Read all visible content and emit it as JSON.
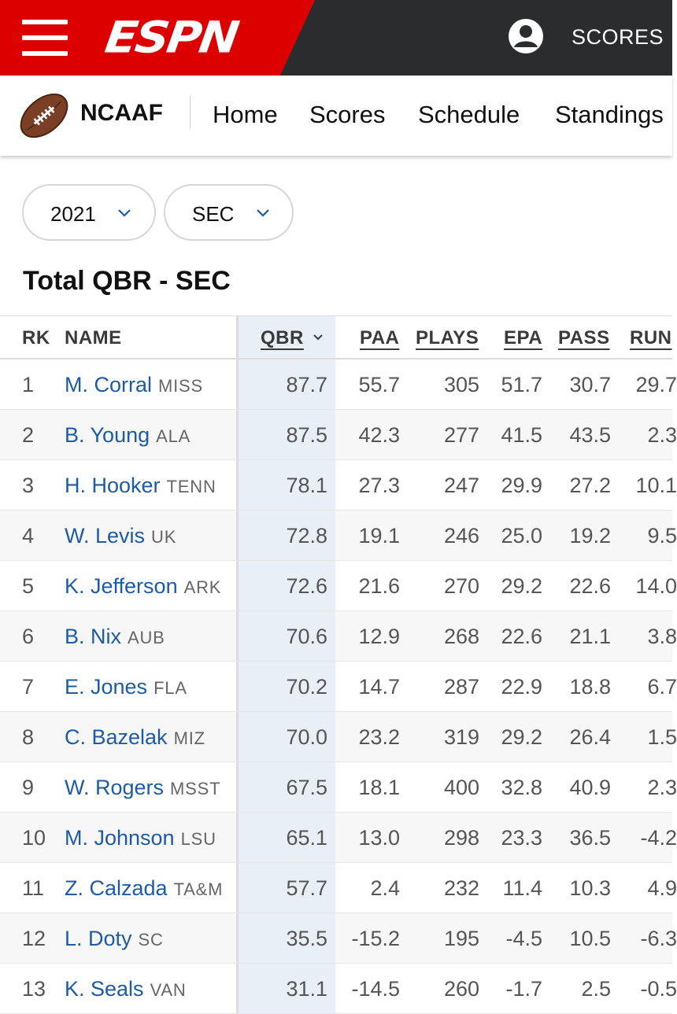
{
  "header": {
    "logo": "ESPN",
    "scores_label": "SCORES",
    "accent": "#dd0000",
    "bar_color": "#2b2c2d"
  },
  "subnav": {
    "league": "NCAAF",
    "items": [
      "Home",
      "Scores",
      "Schedule",
      "Standings"
    ]
  },
  "filters": {
    "season": "2021",
    "conference": "SEC"
  },
  "page_title": "Total QBR - SEC",
  "table": {
    "columns": [
      "RK",
      "NAME",
      "QBR",
      "PAA",
      "PLAYS",
      "EPA",
      "PASS",
      "RUN"
    ],
    "sorted_by": "QBR",
    "rows": [
      {
        "rk": "1",
        "name": "M. Corral",
        "team": "MISS",
        "qbr": "87.7",
        "paa": "55.7",
        "plays": "305",
        "epa": "51.7",
        "pass": "30.7",
        "run": "29.7"
      },
      {
        "rk": "2",
        "name": "B. Young",
        "team": "ALA",
        "qbr": "87.5",
        "paa": "42.3",
        "plays": "277",
        "epa": "41.5",
        "pass": "43.5",
        "run": "2.3"
      },
      {
        "rk": "3",
        "name": "H. Hooker",
        "team": "TENN",
        "qbr": "78.1",
        "paa": "27.3",
        "plays": "247",
        "epa": "29.9",
        "pass": "27.2",
        "run": "10.1"
      },
      {
        "rk": "4",
        "name": "W. Levis",
        "team": "UK",
        "qbr": "72.8",
        "paa": "19.1",
        "plays": "246",
        "epa": "25.0",
        "pass": "19.2",
        "run": "9.5"
      },
      {
        "rk": "5",
        "name": "K. Jefferson",
        "team": "ARK",
        "qbr": "72.6",
        "paa": "21.6",
        "plays": "270",
        "epa": "29.2",
        "pass": "22.6",
        "run": "14.0"
      },
      {
        "rk": "6",
        "name": "B. Nix",
        "team": "AUB",
        "qbr": "70.6",
        "paa": "12.9",
        "plays": "268",
        "epa": "22.6",
        "pass": "21.1",
        "run": "3.8"
      },
      {
        "rk": "7",
        "name": "E. Jones",
        "team": "FLA",
        "qbr": "70.2",
        "paa": "14.7",
        "plays": "287",
        "epa": "22.9",
        "pass": "18.8",
        "run": "6.7"
      },
      {
        "rk": "8",
        "name": "C. Bazelak",
        "team": "MIZ",
        "qbr": "70.0",
        "paa": "23.2",
        "plays": "319",
        "epa": "29.2",
        "pass": "26.4",
        "run": "1.5"
      },
      {
        "rk": "9",
        "name": "W. Rogers",
        "team": "MSST",
        "qbr": "67.5",
        "paa": "18.1",
        "plays": "400",
        "epa": "32.8",
        "pass": "40.9",
        "run": "2.3"
      },
      {
        "rk": "10",
        "name": "M. Johnson",
        "team": "LSU",
        "qbr": "65.1",
        "paa": "13.0",
        "plays": "298",
        "epa": "23.3",
        "pass": "36.5",
        "run": "-4.2"
      },
      {
        "rk": "11",
        "name": "Z. Calzada",
        "team": "TA&M",
        "qbr": "57.7",
        "paa": "2.4",
        "plays": "232",
        "epa": "11.4",
        "pass": "10.3",
        "run": "4.9"
      },
      {
        "rk": "12",
        "name": "L. Doty",
        "team": "SC",
        "qbr": "35.5",
        "paa": "-15.2",
        "plays": "195",
        "epa": "-4.5",
        "pass": "10.5",
        "run": "-6.3"
      },
      {
        "rk": "13",
        "name": "K. Seals",
        "team": "VAN",
        "qbr": "31.1",
        "paa": "-14.5",
        "plays": "260",
        "epa": "-1.7",
        "pass": "2.5",
        "run": "-0.5"
      }
    ]
  }
}
